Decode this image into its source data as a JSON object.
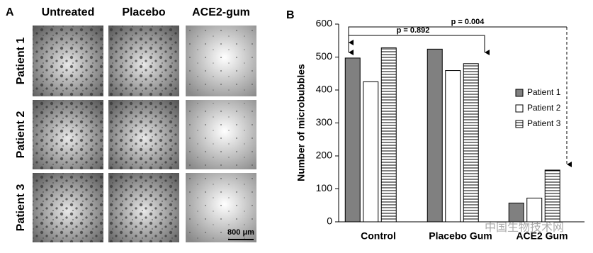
{
  "panel_a": {
    "label": "A",
    "columns": [
      "Untreated",
      "Placebo",
      "ACE2-gum"
    ],
    "rows": [
      "Patient 1",
      "Patient 2",
      "Patient 3"
    ],
    "scale_bar": "800 μm"
  },
  "chart_data": {
    "type": "bar",
    "panel_label": "B",
    "y_label": "Number of microbubbles",
    "categories": [
      "Control",
      "Placebo Gum",
      "ACE2 Gum"
    ],
    "series": [
      {
        "name": "Patient 1",
        "color": "#808080",
        "values": [
          497,
          524,
          57
        ]
      },
      {
        "name": "Patient 2",
        "color": "#ffffff",
        "values": [
          425,
          459,
          72
        ]
      },
      {
        "name": "Patient 3",
        "color": "#ffffff",
        "pattern": "horizontal-stripes",
        "values": [
          528,
          480,
          157
        ]
      }
    ],
    "ylim": [
      0,
      600
    ],
    "yticks": [
      0,
      100,
      200,
      300,
      400,
      500,
      600
    ],
    "grid": false,
    "annotations": [
      "p = 0.892",
      "p = 0.004"
    ]
  },
  "watermark": "中国生物技术网"
}
